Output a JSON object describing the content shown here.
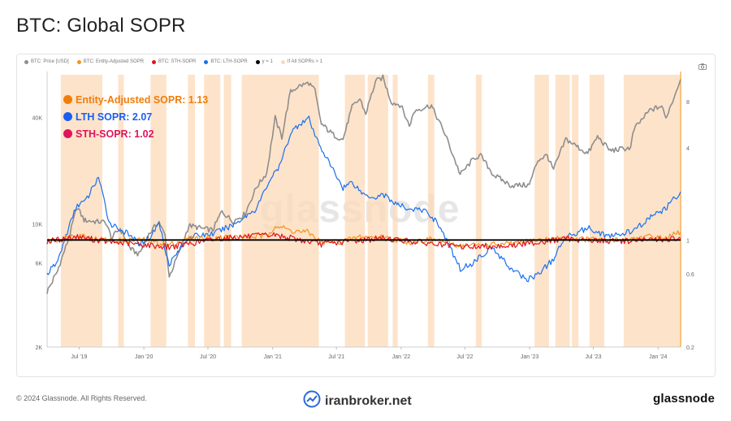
{
  "page": {
    "title": "BTC: Global SOPR",
    "watermark": "glassnode",
    "copyright": "© 2024 Glassnode. All Rights Reserved.",
    "broker": "iranbroker.net",
    "brand": "glassnode"
  },
  "legend": [
    {
      "label": "BTC: Price [USD]",
      "color": "#8e8e8e"
    },
    {
      "label": "BTC: Entity-Adjusted SOPR",
      "color": "#f7931a"
    },
    {
      "label": "BTC: STH-SOPR",
      "color": "#e0141e"
    },
    {
      "label": "BTC: LTH-SOPR",
      "color": "#1a6ff0"
    },
    {
      "label": "y = 1",
      "color": "#000000"
    },
    {
      "label": "If All SOPRs > 1",
      "color": "#fcd9b8"
    }
  ],
  "callouts": [
    {
      "label": "Entity-Adjusted SOPR: 1.13",
      "color": "#f07d0a"
    },
    {
      "label": "LTH SOPR: 2.07",
      "color": "#1a5ff0"
    },
    {
      "label": "STH-SOPR: 1.02",
      "color": "#e0135c"
    }
  ],
  "chart_data": {
    "type": "line",
    "title": "BTC: Global SOPR",
    "x_ticks": [
      "Jul '19",
      "Jan '20",
      "Jul '20",
      "Jan '21",
      "Jul '21",
      "Jan '22",
      "Jul '22",
      "Jan '23",
      "Jul '23",
      "Jan '24"
    ],
    "y_left_ticks": [
      "2K",
      "6K",
      "10K",
      "40K"
    ],
    "y_right_ticks": [
      "0.2",
      "0.6",
      "1",
      "4",
      "8"
    ],
    "y_left_scale": "log",
    "y_right_scale": "log",
    "x_range": [
      "2019-04",
      "2024-03"
    ],
    "y_left_range": [
      2000,
      70000
    ],
    "y_right_range": [
      0.2,
      12
    ],
    "series": [
      {
        "name": "BTC: Price [USD]",
        "color": "#8e8e8e",
        "axis": "left",
        "values": [
          [
            "2019-04-01",
            4100
          ],
          [
            "2019-05-01",
            5400
          ],
          [
            "2019-06-01",
            8200
          ],
          [
            "2019-06-26",
            12500
          ],
          [
            "2019-07-15",
            10500
          ],
          [
            "2019-08-15",
            10300
          ],
          [
            "2019-09-15",
            10200
          ],
          [
            "2019-10-01",
            8300
          ],
          [
            "2019-10-26",
            9400
          ],
          [
            "2019-11-25",
            7200
          ],
          [
            "2019-12-18",
            6700
          ],
          [
            "2020-01-15",
            8700
          ],
          [
            "2020-02-13",
            10300
          ],
          [
            "2020-03-01",
            8600
          ],
          [
            "2020-03-13",
            5000
          ],
          [
            "2020-04-10",
            6900
          ],
          [
            "2020-05-08",
            9800
          ],
          [
            "2020-06-15",
            9400
          ],
          [
            "2020-07-15",
            9200
          ],
          [
            "2020-08-10",
            11800
          ],
          [
            "2020-09-10",
            10300
          ],
          [
            "2020-10-15",
            11400
          ],
          [
            "2020-11-15",
            16000
          ],
          [
            "2020-12-15",
            19400
          ],
          [
            "2021-01-08",
            40000
          ],
          [
            "2021-01-27",
            31000
          ],
          [
            "2021-02-21",
            56000
          ],
          [
            "2021-03-13",
            60000
          ],
          [
            "2021-04-14",
            63000
          ],
          [
            "2021-05-01",
            57000
          ],
          [
            "2021-05-19",
            37000
          ],
          [
            "2021-06-22",
            32000
          ],
          [
            "2021-07-20",
            30000
          ],
          [
            "2021-08-15",
            46000
          ],
          [
            "2021-09-06",
            51000
          ],
          [
            "2021-09-22",
            42000
          ],
          [
            "2021-10-20",
            64000
          ],
          [
            "2021-11-10",
            67500
          ],
          [
            "2021-12-04",
            49000
          ],
          [
            "2022-01-01",
            47000
          ],
          [
            "2022-01-24",
            36000
          ],
          [
            "2022-02-10",
            44000
          ],
          [
            "2022-03-28",
            47000
          ],
          [
            "2022-05-10",
            31000
          ],
          [
            "2022-06-18",
            19000
          ],
          [
            "2022-07-30",
            23800
          ],
          [
            "2022-08-15",
            24300
          ],
          [
            "2022-09-20",
            19000
          ],
          [
            "2022-11-09",
            16500
          ],
          [
            "2022-12-31",
            16600
          ],
          [
            "2023-01-25",
            23000
          ],
          [
            "2023-02-20",
            24500
          ],
          [
            "2023-03-10",
            20200
          ],
          [
            "2023-04-14",
            30300
          ],
          [
            "2023-06-15",
            25000
          ],
          [
            "2023-07-13",
            31200
          ],
          [
            "2023-08-18",
            26000
          ],
          [
            "2023-10-15",
            27000
          ],
          [
            "2023-10-25",
            34500
          ],
          [
            "2023-12-08",
            44000
          ],
          [
            "2024-01-11",
            46500
          ],
          [
            "2024-01-23",
            39500
          ],
          [
            "2024-02-15",
            52000
          ],
          [
            "2024-03-05",
            66000
          ]
        ]
      },
      {
        "name": "BTC: Entity-Adjusted SOPR",
        "color": "#f7931a",
        "axis": "right",
        "values": [
          [
            "2019-04-01",
            0.97
          ],
          [
            "2019-06-01",
            1.04
          ],
          [
            "2019-06-26",
            1.1
          ],
          [
            "2019-08-01",
            1.03
          ],
          [
            "2019-10-01",
            0.99
          ],
          [
            "2020-01-01",
            1.0
          ],
          [
            "2020-03-13",
            0.93
          ],
          [
            "2020-05-08",
            1.02
          ],
          [
            "2020-08-10",
            1.04
          ],
          [
            "2020-12-15",
            1.06
          ],
          [
            "2021-01-08",
            1.25
          ],
          [
            "2021-02-21",
            1.15
          ],
          [
            "2021-04-14",
            1.12
          ],
          [
            "2021-05-19",
            0.96
          ],
          [
            "2021-07-20",
            0.98
          ],
          [
            "2021-09-06",
            1.05
          ],
          [
            "2021-11-10",
            1.04
          ],
          [
            "2022-01-24",
            0.97
          ],
          [
            "2022-03-28",
            1.01
          ],
          [
            "2022-06-18",
            0.92
          ],
          [
            "2022-11-09",
            0.94
          ],
          [
            "2023-01-25",
            1.0
          ],
          [
            "2023-04-14",
            1.03
          ],
          [
            "2023-08-18",
            0.99
          ],
          [
            "2023-12-08",
            1.05
          ],
          [
            "2024-01-23",
            1.02
          ],
          [
            "2024-03-05",
            1.13
          ]
        ]
      },
      {
        "name": "BTC: STH-SOPR",
        "color": "#e0141e",
        "axis": "right",
        "values": [
          [
            "2019-04-01",
            0.98
          ],
          [
            "2019-06-26",
            1.05
          ],
          [
            "2019-10-01",
            0.97
          ],
          [
            "2020-03-13",
            0.9
          ],
          [
            "2020-08-10",
            1.03
          ],
          [
            "2021-01-08",
            1.08
          ],
          [
            "2021-05-19",
            0.94
          ],
          [
            "2021-11-10",
            1.03
          ],
          [
            "2022-06-18",
            0.9
          ],
          [
            "2022-11-09",
            0.92
          ],
          [
            "2023-04-14",
            1.02
          ],
          [
            "2023-08-18",
            0.98
          ],
          [
            "2024-03-05",
            1.02
          ]
        ]
      },
      {
        "name": "BTC: LTH-SOPR",
        "color": "#1a6ff0",
        "axis": "right",
        "values": [
          [
            "2019-04-01",
            0.6
          ],
          [
            "2019-05-01",
            0.72
          ],
          [
            "2019-06-01",
            1.2
          ],
          [
            "2019-06-26",
            1.7
          ],
          [
            "2019-07-20",
            1.8
          ],
          [
            "2019-08-25",
            2.6
          ],
          [
            "2019-09-25",
            1.3
          ],
          [
            "2019-11-15",
            1.1
          ],
          [
            "2019-12-18",
            0.95
          ],
          [
            "2020-01-20",
            1.05
          ],
          [
            "2020-02-13",
            1.3
          ],
          [
            "2020-03-13",
            0.7
          ],
          [
            "2020-05-08",
            1.05
          ],
          [
            "2020-07-15",
            1.1
          ],
          [
            "2020-09-10",
            1.25
          ],
          [
            "2020-11-15",
            1.6
          ],
          [
            "2020-12-25",
            2.5
          ],
          [
            "2021-01-20",
            3.0
          ],
          [
            "2021-02-21",
            5.0
          ],
          [
            "2021-03-20",
            5.8
          ],
          [
            "2021-04-14",
            6.2
          ],
          [
            "2021-05-01",
            4.8
          ],
          [
            "2021-06-10",
            3.2
          ],
          [
            "2021-07-20",
            2.2
          ],
          [
            "2021-08-15",
            2.4
          ],
          [
            "2021-09-15",
            2.0
          ],
          [
            "2021-10-20",
            1.9
          ],
          [
            "2021-11-10",
            2.0
          ],
          [
            "2021-12-20",
            1.7
          ],
          [
            "2022-01-24",
            1.6
          ],
          [
            "2022-03-10",
            1.55
          ],
          [
            "2022-04-15",
            1.3
          ],
          [
            "2022-05-10",
            1.0
          ],
          [
            "2022-06-18",
            0.65
          ],
          [
            "2022-07-20",
            0.7
          ],
          [
            "2022-09-15",
            0.9
          ],
          [
            "2022-11-09",
            0.65
          ],
          [
            "2022-12-25",
            0.55
          ],
          [
            "2023-01-25",
            0.6
          ],
          [
            "2023-03-10",
            0.75
          ],
          [
            "2023-04-14",
            1.05
          ],
          [
            "2023-06-15",
            1.2
          ],
          [
            "2023-08-18",
            1.05
          ],
          [
            "2023-10-25",
            1.15
          ],
          [
            "2023-12-08",
            1.4
          ],
          [
            "2024-01-23",
            1.6
          ],
          [
            "2024-03-05",
            2.07
          ]
        ]
      },
      {
        "name": "y = 1",
        "color": "#000000",
        "axis": "right",
        "values": [
          [
            "2019-04-01",
            1
          ],
          [
            "2024-03-05",
            1
          ]
        ]
      }
    ],
    "highlight_ranges": {
      "name": "If All SOPRs > 1",
      "color": "#fcd9b8",
      "ranges": [
        [
          "2019-05-10",
          "2019-09-05"
        ],
        [
          "2019-10-20",
          "2019-11-05"
        ],
        [
          "2020-01-20",
          "2020-03-05"
        ],
        [
          "2020-05-05",
          "2020-05-25"
        ],
        [
          "2020-06-20",
          "2020-08-05"
        ],
        [
          "2020-08-15",
          "2020-09-05"
        ],
        [
          "2020-10-05",
          "2021-05-12"
        ],
        [
          "2021-07-25",
          "2021-09-20"
        ],
        [
          "2021-09-28",
          "2021-11-25"
        ],
        [
          "2021-12-08",
          "2021-12-22"
        ],
        [
          "2022-03-18",
          "2022-04-05"
        ],
        [
          "2022-08-01",
          "2022-08-18"
        ],
        [
          "2023-01-15",
          "2023-02-25"
        ],
        [
          "2023-03-15",
          "2023-04-25"
        ],
        [
          "2023-05-01",
          "2023-05-20"
        ],
        [
          "2023-06-20",
          "2023-08-01"
        ],
        [
          "2023-09-25",
          "2024-03-05"
        ]
      ]
    }
  }
}
